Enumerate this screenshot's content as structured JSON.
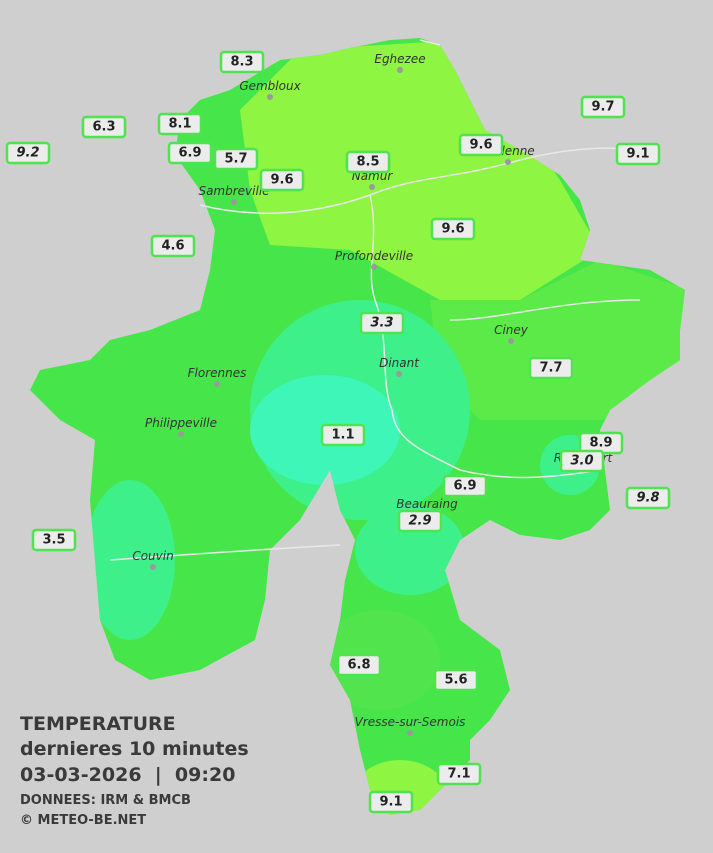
{
  "title": {
    "line1": "TEMPERATURE",
    "line2": "dernieres 10 minutes",
    "line3": "03-03-2026  |  09:20",
    "line4": "DONNEES: IRM & BMCB",
    "line5": "© METEO-BE.NET"
  },
  "cities": [
    "Eghezee",
    "Gembloux",
    "Andenne",
    "Namur",
    "Sambreville",
    "Profondeville",
    "Ciney",
    "Dinant",
    "Florennes",
    "Philippeville",
    "Rochefort",
    "Beauraing",
    "Couvin",
    "Vresse-sur-Semois"
  ],
  "stations": [
    "8.3",
    "6.3",
    "9.2",
    "8.1",
    "6.9",
    "5.7",
    "9.6",
    "8.5",
    "9.6",
    "9.7",
    "9.1",
    "9.6",
    "4.6",
    "3.3",
    "7.7",
    "1.1",
    "8.9",
    "3.0",
    "9.8",
    "6.9",
    "2.9",
    "3.5",
    "6.8",
    "5.6",
    "7.1",
    "9.1"
  ]
}
